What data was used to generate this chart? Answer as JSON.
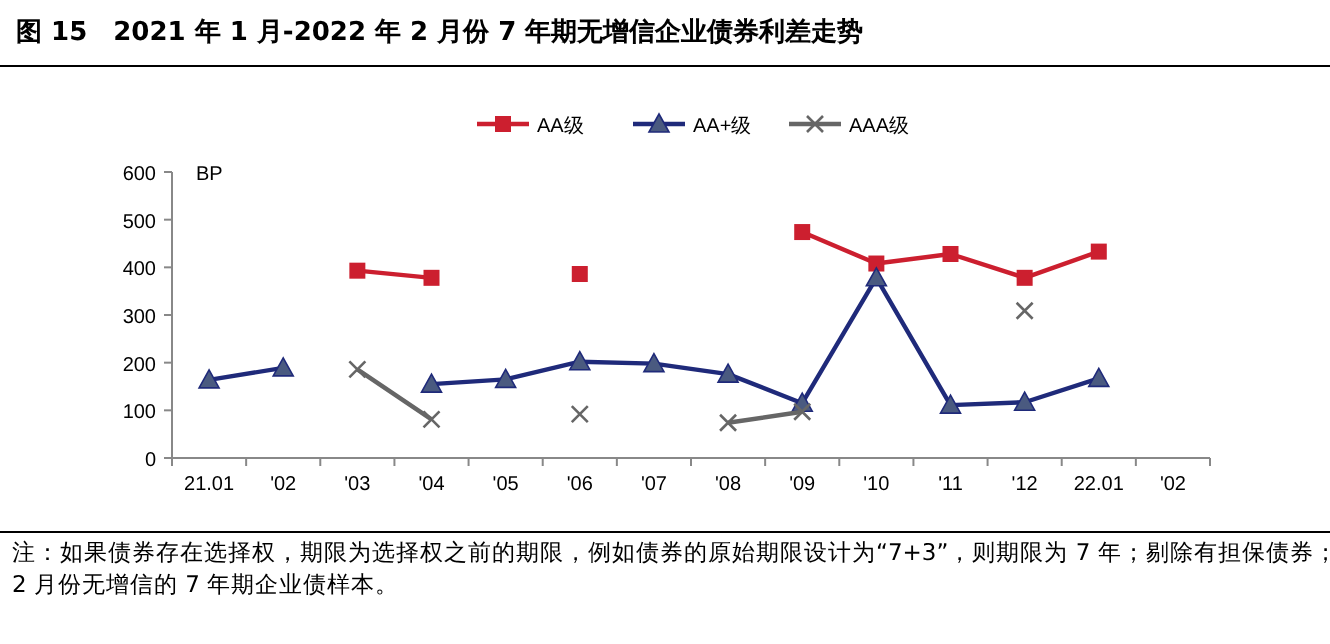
{
  "chart_data": {
    "type": "line",
    "title": "图 15　2021 年 1 月-2022 年 2 月份 7 年期无增信企业债券利差走势",
    "ylabel": "BP",
    "categories": [
      "21.01",
      "'02",
      "'03",
      "'04",
      "'05",
      "'06",
      "'07",
      "'08",
      "'09",
      "'10",
      "'11",
      "'12",
      "22.01",
      "'02"
    ],
    "series": [
      {
        "name": "AA级",
        "color": "#cc1f2f",
        "marker": "square",
        "values": [
          null,
          null,
          393,
          378,
          null,
          386,
          null,
          null,
          474,
          408,
          428,
          378,
          433,
          null
        ]
      },
      {
        "name": "AA+级",
        "color": "#1f2a7a",
        "marker": "triangle",
        "values": [
          164,
          189,
          null,
          155,
          165,
          202,
          198,
          176,
          115,
          378,
          111,
          117,
          167,
          null
        ]
      },
      {
        "name": "AAA级",
        "color": "#666666",
        "marker": "cross",
        "values": [
          null,
          null,
          186,
          81,
          null,
          92,
          null,
          74,
          97,
          null,
          null,
          309,
          null,
          null
        ]
      }
    ],
    "ylim": [
      0,
      600
    ],
    "yticks": [
      0,
      100,
      200,
      300,
      400,
      500,
      600
    ],
    "grid": false,
    "legend": "top",
    "annotations": [
      "注：如果债券存在选择权，期限为选择权之前的期限，例如债券的原始期限设计为“7+3”，则期限为 7 年；剔除有担保债券；",
      "2 月份无增信的 7 年期企业债样本。"
    ]
  }
}
